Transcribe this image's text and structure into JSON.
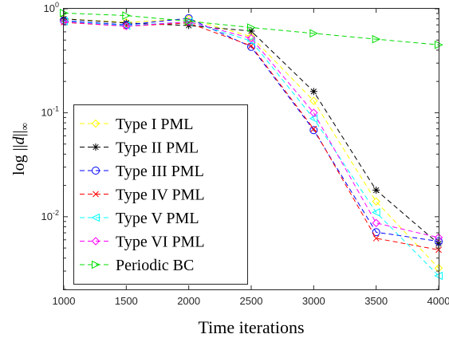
{
  "chart_data": {
    "type": "line",
    "xlabel": "Time iterations",
    "ylabel": "log ||d||∞",
    "x_scale": "linear",
    "y_scale": "log",
    "xlim": [
      1000,
      4000
    ],
    "ylim": [
      0.002,
      1
    ],
    "x_ticks": [
      1000,
      1500,
      2000,
      2500,
      3000,
      3500,
      4000
    ],
    "x_tick_labels": [
      "1000",
      "1500",
      "2000",
      "2500",
      "3000",
      "3500",
      "4000"
    ],
    "y_ticks": [
      {
        "value": 1,
        "base": "10",
        "exp": "0"
      },
      {
        "value": 0.1,
        "base": "10",
        "exp": "-1"
      },
      {
        "value": 0.01,
        "base": "10",
        "exp": "-2"
      }
    ],
    "grid": false,
    "legend_position": "bottom-left",
    "x": [
      1000,
      1500,
      2000,
      2500,
      3000,
      3500,
      4000
    ],
    "series": [
      {
        "name": "Type I PML",
        "color": "#ffff00",
        "marker": "diamond",
        "values": [
          0.8,
          0.74,
          0.8,
          0.54,
          0.13,
          0.014,
          0.0032
        ]
      },
      {
        "name": "Type II PML",
        "color": "#000000",
        "marker": "asterisk",
        "values": [
          0.8,
          0.73,
          0.69,
          0.61,
          0.16,
          0.018,
          0.0055
        ]
      },
      {
        "name": "Type III PML",
        "color": "#0000ff",
        "marker": "circle",
        "values": [
          0.77,
          0.7,
          0.81,
          0.43,
          0.068,
          0.0071,
          0.0058
        ]
      },
      {
        "name": "Type IV PML",
        "color": "#ff0000",
        "marker": "x",
        "values": [
          0.74,
          0.68,
          0.73,
          0.44,
          0.07,
          0.0062,
          0.0048
        ]
      },
      {
        "name": "Type V PML",
        "color": "#00ffff",
        "marker": "triangle-left",
        "values": [
          0.76,
          0.69,
          0.75,
          0.49,
          0.088,
          0.011,
          0.0027
        ]
      },
      {
        "name": "Type VI PML",
        "color": "#ff00ff",
        "marker": "diamond",
        "values": [
          0.75,
          0.68,
          0.75,
          0.52,
          0.1,
          0.0087,
          0.0063
        ]
      },
      {
        "name": "Periodic BC",
        "color": "#00dd00",
        "marker": "triangle-right",
        "values": [
          0.91,
          0.86,
          0.76,
          0.66,
          0.58,
          0.51,
          0.45
        ]
      }
    ]
  }
}
